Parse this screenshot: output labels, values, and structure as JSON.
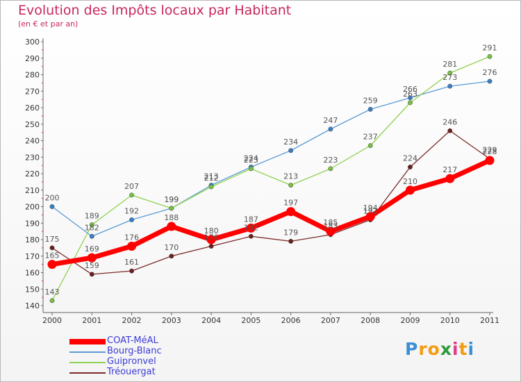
{
  "chart_data": {
    "type": "line",
    "title": "Evolution des Impôts locaux par Habitant",
    "subtitle": "(en € et par an)",
    "xlabel": "",
    "ylabel": "",
    "categories": [
      "2000",
      "2001",
      "2002",
      "2003",
      "2004",
      "2005",
      "2006",
      "2007",
      "2008",
      "2009",
      "2010",
      "2011"
    ],
    "ylim": [
      140,
      300
    ],
    "yticks": [
      140,
      150,
      160,
      170,
      180,
      190,
      200,
      210,
      220,
      230,
      240,
      250,
      260,
      270,
      280,
      290,
      300
    ],
    "grid": false,
    "legend_position": "bottom-left",
    "series": [
      {
        "name": "COAT-MéAL",
        "color": "#ff0000",
        "dot": "#dd0000",
        "emphasis": true,
        "values": [
          165,
          169,
          176,
          188,
          180,
          187,
          197,
          185,
          194,
          210,
          217,
          228
        ]
      },
      {
        "name": "Bourg-Blanc",
        "color": "#5b9bd5",
        "dot": "#3a7fc4",
        "emphasis": false,
        "values": [
          200,
          182,
          192,
          199,
          213,
          224,
          234,
          247,
          259,
          266,
          273,
          276
        ]
      },
      {
        "name": "Guipronvel",
        "color": "#8fd14f",
        "dot": "#76c043",
        "emphasis": false,
        "values": [
          143,
          189,
          207,
          199,
          212,
          223,
          213,
          223,
          237,
          263,
          281,
          291
        ]
      },
      {
        "name": "Tréouergat",
        "color": "#7b2a2a",
        "dot": "#6a1f1f",
        "emphasis": false,
        "values": [
          175,
          159,
          161,
          170,
          176,
          182,
          179,
          183,
          192,
          224,
          246,
          229
        ]
      }
    ]
  },
  "logo": {
    "text": "Proxiti",
    "letters": [
      {
        "ch": "P",
        "color": "#3a8fd8"
      },
      {
        "ch": "r",
        "color": "#f39c12"
      },
      {
        "ch": "o",
        "color": "#f39c12"
      },
      {
        "ch": "x",
        "color": "#2e9a3e"
      },
      {
        "ch": "i",
        "color": "#e03a8a"
      },
      {
        "ch": "t",
        "color": "#f39c12"
      },
      {
        "ch": "i",
        "color": "#3a8fd8"
      }
    ]
  }
}
